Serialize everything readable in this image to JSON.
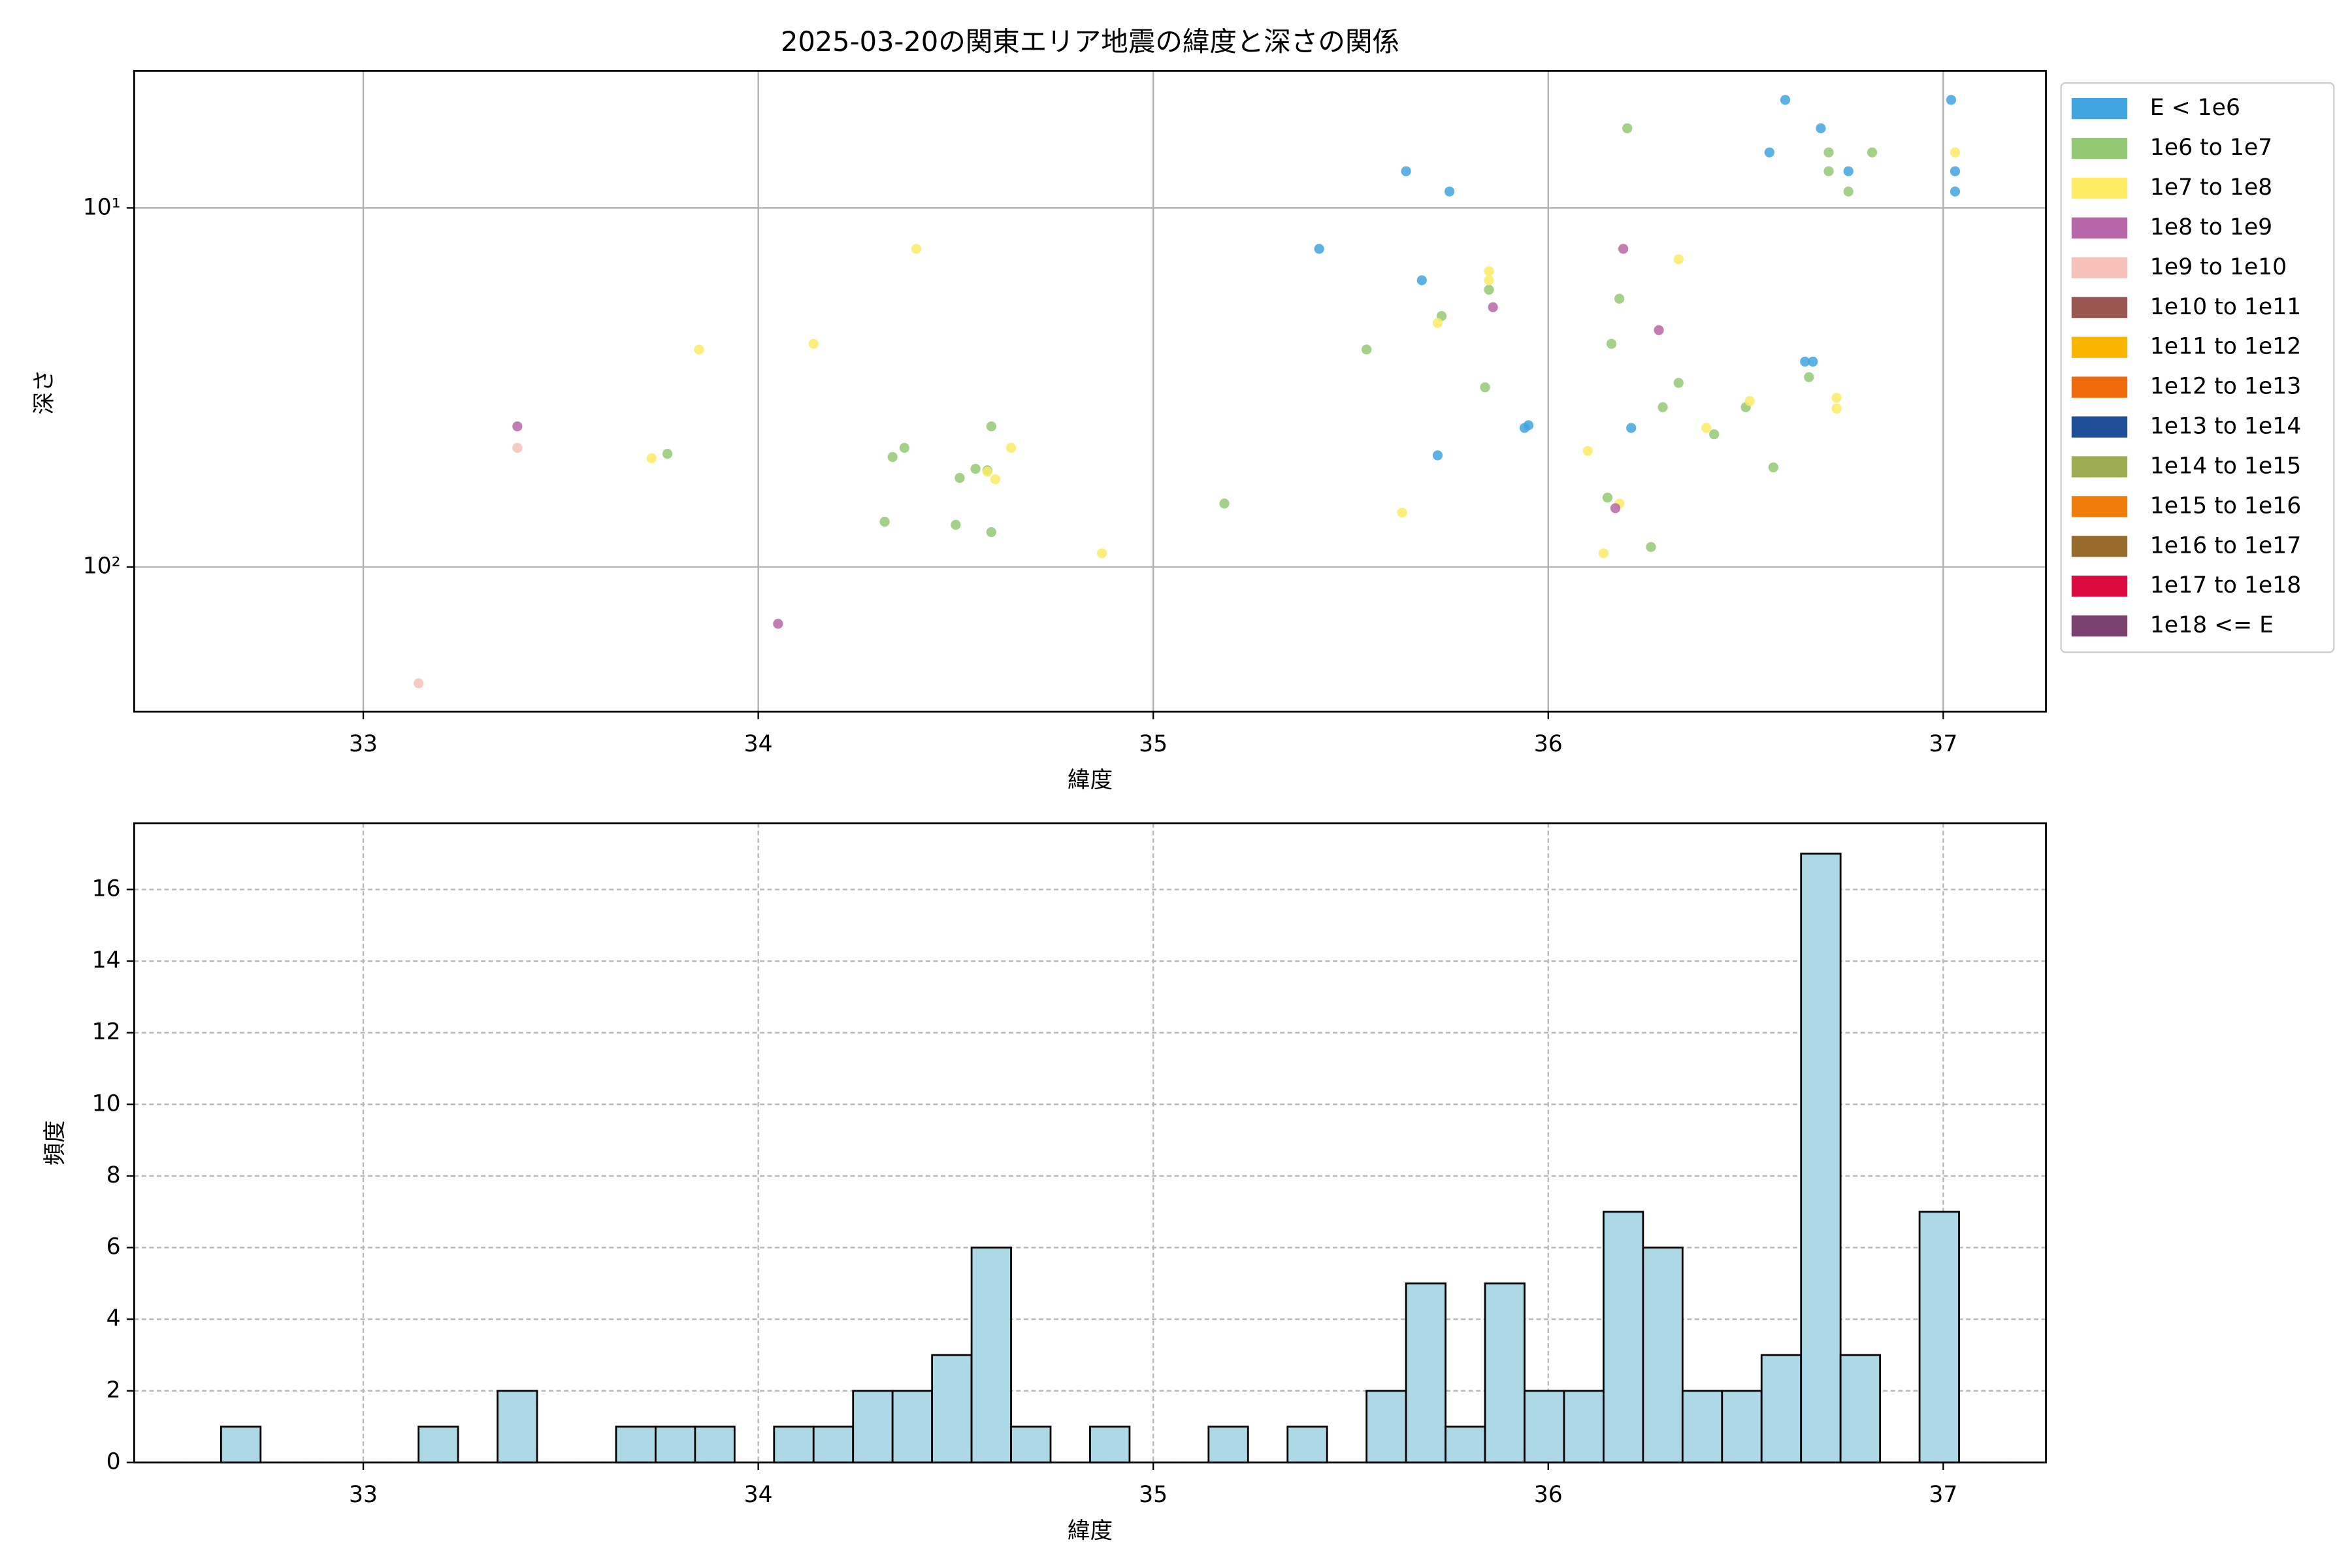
{
  "chart_data": [
    {
      "type": "scatter",
      "title": "2025-03-20の関東エリア地震の緯度と深さの関係",
      "xlabel": "緯度",
      "ylabel": "深さ",
      "yscale": "log",
      "xlim": [
        32.42,
        37.26
      ],
      "ylim": [
        253,
        4.15
      ],
      "xticks": [
        33,
        34,
        35,
        36,
        37
      ],
      "yticks": [
        {
          "value": 10,
          "label": "10¹"
        },
        {
          "value": 100,
          "label": "10²"
        }
      ],
      "grid": true,
      "legend": "outside right",
      "series": [
        {
          "name": "E < 1e6",
          "color": "#41a5e0",
          "x": [
            36.6,
            37.02,
            36.69,
            36.56,
            36.76,
            37.03,
            35.64,
            35.75,
            37.03,
            35.42,
            35.68,
            36.65,
            36.67,
            35.95,
            35.94,
            36.21,
            35.72
          ],
          "values": [
            5.0,
            5.0,
            6.0,
            7.0,
            7.9,
            7.9,
            7.9,
            9.0,
            9.0,
            13.0,
            15.9,
            26.8,
            26.8,
            40.3,
            41,
            41,
            48.9
          ]
        },
        {
          "name": "1e6 to 1e7",
          "color": "#93c973",
          "x": [
            36.2,
            36.71,
            36.82,
            36.71,
            36.76,
            36.18,
            35.85,
            35.73,
            35.54,
            36.16,
            36.66,
            36.33,
            35.84,
            36.29,
            36.5,
            36.42,
            36.57,
            34.59,
            34.37,
            34.34,
            33.77,
            34.55,
            34.58,
            34.51,
            36.15,
            35.18,
            34.32,
            34.5,
            34.59,
            36.26
          ],
          "values": [
            6.0,
            7.0,
            7.0,
            7.9,
            9.0,
            17.9,
            16.9,
            20,
            24.8,
            23.9,
            29.6,
            30.7,
            31.6,
            35.9,
            35.9,
            42.7,
            52.8,
            40.6,
            46.6,
            49.4,
            48.4,
            53.3,
            53.8,
            56.5,
            64.1,
            66.6,
            74.8,
            76.3,
            80,
            88
          ]
        },
        {
          "name": "1e7 to 1e8",
          "color": "#fdeb64",
          "x": [
            37.03,
            34.4,
            36.33,
            35.85,
            35.85,
            35.72,
            34.14,
            33.85,
            36.51,
            36.73,
            36.73,
            36.4,
            34.64,
            36.1,
            33.73,
            34.58,
            34.6,
            36.18,
            35.63,
            34.87,
            36.14
          ],
          "values": [
            7.0,
            13.0,
            13.9,
            15.0,
            15.9,
            20.9,
            23.9,
            24.8,
            34.5,
            33.8,
            36.2,
            41,
            46.6,
            47.5,
            49.8,
            54.3,
            57.0,
            66.6,
            70.6,
            91.6,
            91.6
          ]
        },
        {
          "name": "1e8 to 1e9",
          "color": "#b766a7",
          "x": [
            36.19,
            35.86,
            36.28,
            33.39,
            36.17,
            34.05
          ],
          "values": [
            13.0,
            18.9,
            21.9,
            40.6,
            68.6,
            144
          ]
        },
        {
          "name": "1e9 to 1e10",
          "color": "#f5c1b8",
          "x": [
            33.39,
            33.14
          ],
          "values": [
            46.6,
            211
          ]
        },
        {
          "name": "1e10 to 1e11",
          "color": "#9a5751",
          "x": [],
          "values": []
        },
        {
          "name": "1e11 to 1e12",
          "color": "#f7b500",
          "x": [],
          "values": []
        },
        {
          "name": "1e12 to 1e13",
          "color": "#ef6a0a",
          "x": [],
          "values": []
        },
        {
          "name": "1e13 to 1e14",
          "color": "#1e4f98",
          "x": [],
          "values": []
        },
        {
          "name": "1e14 to 1e15",
          "color": "#9ead52",
          "x": [],
          "values": []
        },
        {
          "name": "1e15 to 1e16",
          "color": "#ee7d0a",
          "x": [],
          "values": []
        },
        {
          "name": "1e16 to 1e17",
          "color": "#966b2c",
          "x": [],
          "values": []
        },
        {
          "name": "1e17 to 1e18",
          "color": "#db0a3f",
          "x": [],
          "values": []
        },
        {
          "name": "1e18 <= E",
          "color": "#7a416f",
          "x": [],
          "values": []
        }
      ]
    },
    {
      "type": "histogram",
      "xlabel": "緯度",
      "ylabel": "頻度",
      "xlim": [
        32.42,
        37.26
      ],
      "ylim": [
        0,
        17.85
      ],
      "xticks": [
        33,
        34,
        35,
        36,
        37
      ],
      "yticks": [
        0,
        2,
        4,
        6,
        8,
        10,
        12,
        14,
        16
      ],
      "grid": true,
      "grid_style": "dashed",
      "color": "#add8e6",
      "edgecolor": "#000000",
      "bins": [
        32.64,
        32.74,
        32.84,
        32.94,
        33.04,
        33.14,
        33.24,
        33.34,
        33.44,
        33.54,
        33.64,
        33.74,
        33.84,
        33.94,
        34.04,
        34.14,
        34.24,
        34.34,
        34.44,
        34.54,
        34.64,
        34.74,
        34.84,
        34.94,
        35.04,
        35.14,
        35.24,
        35.34,
        35.44,
        35.54,
        35.64,
        35.74,
        35.84,
        35.94,
        36.04,
        36.14,
        36.24,
        36.34,
        36.44,
        36.54,
        36.64,
        36.74,
        36.84,
        36.94,
        37.04
      ],
      "values": [
        1,
        0,
        0,
        0,
        0,
        1,
        0,
        2,
        0,
        0,
        1,
        1,
        1,
        0,
        1,
        1,
        2,
        2,
        3,
        6,
        1,
        0,
        1,
        0,
        0,
        1,
        0,
        1,
        0,
        2,
        5,
        1,
        5,
        2,
        2,
        7,
        6,
        2,
        2,
        3,
        17,
        3,
        0,
        7
      ]
    }
  ]
}
